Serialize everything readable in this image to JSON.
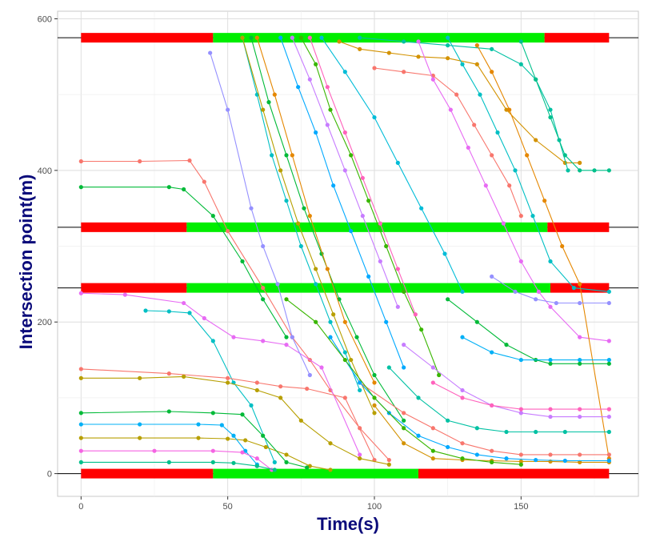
{
  "chart_data": {
    "type": "line",
    "xlabel": "Time(s)",
    "ylabel": "Intersection point(m)",
    "xlim": [
      -8,
      190
    ],
    "ylim": [
      -30,
      610
    ],
    "x_ticks": [
      0,
      50,
      100,
      150
    ],
    "y_ticks": [
      0,
      200,
      400,
      600
    ],
    "grid": true,
    "legend": "none",
    "signal_colors": {
      "red": "#ff0000",
      "green": "#00ee00"
    },
    "intersections": [
      {
        "position": 0,
        "phases": [
          {
            "start": 0,
            "end": 45,
            "state": "red"
          },
          {
            "start": 45,
            "end": 115,
            "state": "green"
          },
          {
            "start": 115,
            "end": 180,
            "state": "red"
          }
        ]
      },
      {
        "position": 245,
        "phases": [
          {
            "start": 0,
            "end": 36,
            "state": "red"
          },
          {
            "start": 36,
            "end": 160,
            "state": "green"
          },
          {
            "start": 160,
            "end": 180,
            "state": "red"
          }
        ]
      },
      {
        "position": 325,
        "phases": [
          {
            "start": 0,
            "end": 36,
            "state": "red"
          },
          {
            "start": 36,
            "end": 159,
            "state": "green"
          },
          {
            "start": 159,
            "end": 180,
            "state": "red"
          }
        ]
      },
      {
        "position": 575,
        "phases": [
          {
            "start": 0,
            "end": 45,
            "state": "red"
          },
          {
            "start": 45,
            "end": 158,
            "state": "green"
          },
          {
            "start": 158,
            "end": 180,
            "state": "red"
          }
        ]
      }
    ],
    "series": [
      {
        "color": "#f8766d",
        "x": [
          0,
          20,
          37,
          42,
          50,
          62,
          72,
          78,
          85,
          95,
          105
        ],
        "y": [
          412,
          412,
          413,
          385,
          320,
          245,
          180,
          150,
          110,
          60,
          18
        ]
      },
      {
        "color": "#e76bf3",
        "x": [
          0,
          15,
          35,
          42,
          52,
          62,
          70,
          82,
          95
        ],
        "y": [
          238,
          236,
          225,
          205,
          180,
          175,
          170,
          140,
          25
        ]
      },
      {
        "color": "#00bfc4",
        "x": [
          22,
          30,
          37,
          45,
          52,
          58,
          66
        ],
        "y": [
          215,
          214,
          212,
          175,
          120,
          90,
          15
        ]
      },
      {
        "color": "#00ba38",
        "x": [
          0,
          30,
          35,
          45,
          55,
          62,
          70
        ],
        "y": [
          378,
          378,
          375,
          340,
          280,
          230,
          180
        ]
      },
      {
        "color": "#b79f00",
        "x": [
          0,
          20,
          40,
          50,
          56,
          63,
          70,
          78,
          85
        ],
        "y": [
          47,
          47,
          47,
          46,
          44,
          35,
          25,
          10,
          5
        ]
      },
      {
        "color": "#00b0f6",
        "x": [
          0,
          20,
          40,
          48,
          52,
          56,
          60
        ],
        "y": [
          65,
          65,
          65,
          64,
          50,
          30,
          12
        ]
      },
      {
        "color": "#f564e3",
        "x": [
          0,
          25,
          45,
          55,
          60,
          65
        ],
        "y": [
          30,
          30,
          30,
          28,
          20,
          5
        ]
      },
      {
        "color": "#00c08b",
        "x": [
          0,
          30,
          45,
          52,
          60,
          66
        ],
        "y": [
          15,
          15,
          15,
          14,
          10,
          5
        ]
      },
      {
        "color": "#00ba38",
        "x": [
          0,
          30,
          45,
          55,
          62,
          70,
          77
        ],
        "y": [
          80,
          82,
          80,
          78,
          50,
          15,
          8
        ]
      },
      {
        "color": "#f8766d",
        "x": [
          0,
          30,
          50,
          60,
          68,
          77,
          90,
          100
        ],
        "y": [
          138,
          132,
          126,
          120,
          115,
          112,
          100,
          18
        ]
      },
      {
        "color": "#b79f00",
        "x": [
          0,
          20,
          35,
          50,
          60,
          68,
          75,
          85,
          95,
          105
        ],
        "y": [
          126,
          126,
          128,
          120,
          110,
          100,
          70,
          40,
          20,
          12
        ]
      },
      {
        "color": "#9590ff",
        "x": [
          44,
          50,
          58,
          62,
          67,
          72,
          78
        ],
        "y": [
          555,
          480,
          350,
          300,
          250,
          180,
          130
        ]
      },
      {
        "color": "#00bfc4",
        "x": [
          55,
          60,
          65,
          70,
          75,
          80,
          85,
          90,
          95
        ],
        "y": [
          575,
          500,
          420,
          360,
          300,
          250,
          200,
          160,
          110
        ]
      },
      {
        "color": "#b79f00",
        "x": [
          55,
          62,
          68,
          74,
          80,
          86,
          92,
          100
        ],
        "y": [
          575,
          480,
          400,
          330,
          270,
          210,
          150,
          80
        ]
      },
      {
        "color": "#00ba38",
        "x": [
          58,
          64,
          70,
          76,
          82,
          88,
          94,
          100,
          110
        ],
        "y": [
          575,
          490,
          420,
          350,
          290,
          230,
          180,
          130,
          70
        ]
      },
      {
        "color": "#e58700",
        "x": [
          60,
          66,
          72,
          78,
          84,
          90,
          100
        ],
        "y": [
          575,
          500,
          420,
          340,
          270,
          200,
          120
        ]
      },
      {
        "color": "#00a9ff",
        "x": [
          68,
          74,
          80,
          86,
          92,
          98,
          104,
          110
        ],
        "y": [
          575,
          510,
          450,
          380,
          320,
          260,
          200,
          140
        ]
      },
      {
        "color": "#c77cff",
        "x": [
          72,
          78,
          84,
          90,
          96,
          102,
          108
        ],
        "y": [
          575,
          520,
          460,
          400,
          340,
          280,
          220
        ]
      },
      {
        "color": "#39b600",
        "x": [
          75,
          80,
          85,
          92,
          98,
          104,
          110,
          116,
          122
        ],
        "y": [
          575,
          540,
          480,
          420,
          360,
          300,
          240,
          190,
          130
        ]
      },
      {
        "color": "#ff62bc",
        "x": [
          78,
          84,
          90,
          96,
          102,
          108,
          114
        ],
        "y": [
          575,
          510,
          450,
          390,
          330,
          270,
          210
        ]
      },
      {
        "color": "#00bcd8",
        "x": [
          82,
          90,
          100,
          108,
          116,
          124,
          130
        ],
        "y": [
          575,
          530,
          470,
          410,
          350,
          290,
          240
        ]
      },
      {
        "color": "#d39200",
        "x": [
          88,
          95,
          105,
          115,
          125,
          135,
          145,
          155,
          165,
          170
        ],
        "y": [
          570,
          560,
          555,
          550,
          548,
          540,
          480,
          440,
          410,
          410
        ]
      },
      {
        "color": "#00c1a3",
        "x": [
          95,
          110,
          125,
          140,
          150,
          155,
          160,
          163,
          166
        ],
        "y": [
          575,
          570,
          565,
          560,
          540,
          520,
          480,
          440,
          400
        ]
      },
      {
        "color": "#f8766d",
        "x": [
          100,
          110,
          120,
          128,
          134,
          140,
          146,
          150
        ],
        "y": [
          535,
          530,
          525,
          500,
          460,
          420,
          380,
          340
        ]
      },
      {
        "color": "#e76bf3",
        "x": [
          115,
          120,
          126,
          132,
          138,
          144,
          150,
          156,
          160,
          170,
          180
        ],
        "y": [
          570,
          520,
          480,
          430,
          380,
          330,
          280,
          240,
          220,
          180,
          175
        ]
      },
      {
        "color": "#00bfc4",
        "x": [
          125,
          130,
          136,
          142,
          148,
          154,
          160,
          168,
          180
        ],
        "y": [
          575,
          540,
          500,
          450,
          400,
          340,
          280,
          245,
          240
        ]
      },
      {
        "color": "#e58700",
        "x": [
          135,
          140,
          146,
          152,
          158,
          164,
          170,
          180
        ],
        "y": [
          565,
          530,
          480,
          420,
          360,
          300,
          250,
          20
        ]
      },
      {
        "color": "#00c08b",
        "x": [
          150,
          155,
          160,
          165,
          170,
          175,
          180
        ],
        "y": [
          570,
          520,
          470,
          420,
          400,
          400,
          400
        ]
      },
      {
        "color": "#9590ff",
        "x": [
          140,
          148,
          155,
          162,
          170,
          180
        ],
        "y": [
          260,
          240,
          230,
          225,
          225,
          225
        ]
      },
      {
        "color": "#00ba38",
        "x": [
          125,
          135,
          145,
          155,
          160,
          170,
          180
        ],
        "y": [
          230,
          200,
          170,
          150,
          145,
          145,
          145
        ]
      },
      {
        "color": "#00b0f6",
        "x": [
          130,
          140,
          150,
          160,
          170,
          180
        ],
        "y": [
          180,
          160,
          150,
          150,
          150,
          150
        ]
      },
      {
        "color": "#f8766d",
        "x": [
          95,
          110,
          120,
          130,
          140,
          150,
          160,
          170,
          180
        ],
        "y": [
          120,
          80,
          60,
          40,
          30,
          25,
          25,
          25,
          25
        ]
      },
      {
        "color": "#c77cff",
        "x": [
          110,
          120,
          130,
          140,
          150,
          160,
          170,
          180
        ],
        "y": [
          170,
          140,
          110,
          90,
          80,
          75,
          75,
          75
        ]
      },
      {
        "color": "#00c1a3",
        "x": [
          105,
          115,
          125,
          135,
          145,
          155,
          165,
          180
        ],
        "y": [
          140,
          100,
          70,
          60,
          55,
          55,
          55,
          55
        ]
      },
      {
        "color": "#ff62bc",
        "x": [
          120,
          130,
          140,
          150,
          160,
          170,
          180
        ],
        "y": [
          120,
          100,
          90,
          85,
          85,
          85,
          85
        ]
      },
      {
        "color": "#d39200",
        "x": [
          100,
          110,
          120,
          130,
          140,
          150,
          160,
          170,
          180
        ],
        "y": [
          90,
          40,
          20,
          18,
          17,
          16,
          16,
          15,
          15
        ]
      },
      {
        "color": "#00a9ff",
        "x": [
          85,
          95,
          105,
          115,
          125,
          135,
          145,
          155,
          165,
          180
        ],
        "y": [
          180,
          120,
          80,
          50,
          35,
          25,
          20,
          18,
          17,
          17
        ]
      },
      {
        "color": "#39b600",
        "x": [
          70,
          80,
          90,
          100,
          110,
          120,
          130,
          140,
          150
        ],
        "y": [
          230,
          200,
          150,
          100,
          60,
          30,
          20,
          15,
          12
        ]
      }
    ]
  }
}
